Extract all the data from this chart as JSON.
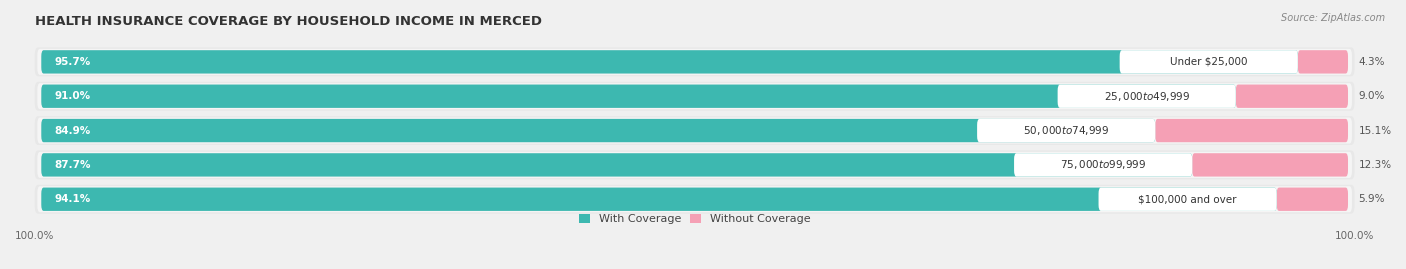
{
  "title": "HEALTH INSURANCE COVERAGE BY HOUSEHOLD INCOME IN MERCED",
  "source": "Source: ZipAtlas.com",
  "categories": [
    "Under $25,000",
    "$25,000 to $49,999",
    "$50,000 to $74,999",
    "$75,000 to $99,999",
    "$100,000 and over"
  ],
  "with_coverage": [
    95.7,
    91.0,
    84.9,
    87.7,
    94.1
  ],
  "without_coverage": [
    4.3,
    9.0,
    15.1,
    12.3,
    5.9
  ],
  "teal_color": "#3db8b0",
  "pink_color": "#f07090",
  "light_pink_color": "#f5a0b5",
  "title_fontsize": 9.5,
  "label_fontsize": 7.5,
  "value_fontsize": 7.5,
  "tick_fontsize": 7.5,
  "legend_fontsize": 8,
  "fig_width": 14.06,
  "fig_height": 2.69,
  "x_left_label": "100.0%",
  "x_right_label": "100.0%",
  "row_bg_outer": "#e8e8e8",
  "row_bg_inner": "#f5f5f5",
  "bar_total": 100
}
